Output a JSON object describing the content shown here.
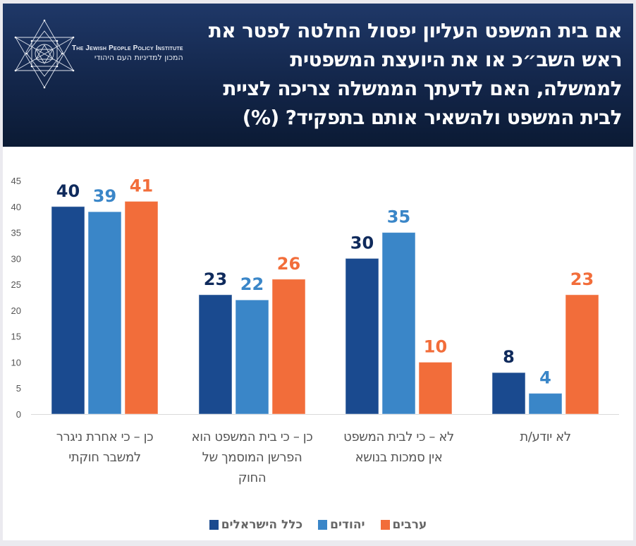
{
  "header": {
    "logo": {
      "icon": "star-of-david-geometric-logo-icon",
      "name_en": "The Jewish People Policy Institute",
      "name_he": "המכון למדיניות העם היהודי"
    },
    "title": "אם בית המשפט העליון יפסול החלטה לפטר את ראש השב״כ או את היועצת המשפטית לממשלה, האם לדעתך הממשלה צריכה לציית לבית המשפט ולהשאיר אותם בתפקיד? (%)"
  },
  "colors": {
    "header_bg": "#13264a",
    "all_israelis": "#1a4a8f",
    "jews": "#3a86c8",
    "arabs": "#f26d3a",
    "label_all_israelis": "#0f2a5c",
    "label_jews": "#3a86c8",
    "label_arabs": "#f26d3a",
    "axis_text": "#555555",
    "gridline": "#d9d9d9"
  },
  "chart_data": {
    "type": "bar",
    "title": "אם בית המשפט העליון יפסול החלטה לפטר את ראש השב״כ או את היועצת המשפטית לממשלה, האם לדעתך הממשלה צריכה לציית לבית המשפט ולהשאיר אותם בתפקיד? (%)",
    "xlabel": "",
    "ylabel": "",
    "ylim": [
      0,
      45
    ],
    "yticks": [
      0,
      5,
      10,
      15,
      20,
      25,
      30,
      35,
      40,
      45
    ],
    "grid": false,
    "legend_position": "bottom",
    "categories": [
      "כן – כי אחרת ניגרר למשבר חוקתי",
      "כן – כי בית המשפט הוא הפרשן המוסמך של החוק",
      "לא – כי לבית המשפט אין סמכות בנושא",
      "לא יודע/ת"
    ],
    "category_lines": [
      [
        "כן – כי אחרת ניגרר",
        "למשבר חוקתי"
      ],
      [
        "כן – כי בית המשפט הוא",
        "הפרשן המוסמך של",
        "החוק"
      ],
      [
        "לא – כי לבית המשפט",
        "אין סמכות בנושא"
      ],
      [
        "לא יודע/ת"
      ]
    ],
    "series": [
      {
        "name": "כלל הישראלים",
        "key": "all_israelis",
        "values": [
          40,
          23,
          30,
          8
        ]
      },
      {
        "name": "יהודים",
        "key": "jews",
        "values": [
          39,
          22,
          35,
          4
        ]
      },
      {
        "name": "ערבים",
        "key": "arabs",
        "values": [
          41,
          26,
          10,
          23
        ]
      }
    ],
    "data_labels": true
  },
  "legend": {
    "items": [
      {
        "label": "ערבים",
        "key": "arabs"
      },
      {
        "label": "יהודים",
        "key": "jews"
      },
      {
        "label": "כלל הישראלים",
        "key": "all_israelis"
      }
    ]
  }
}
